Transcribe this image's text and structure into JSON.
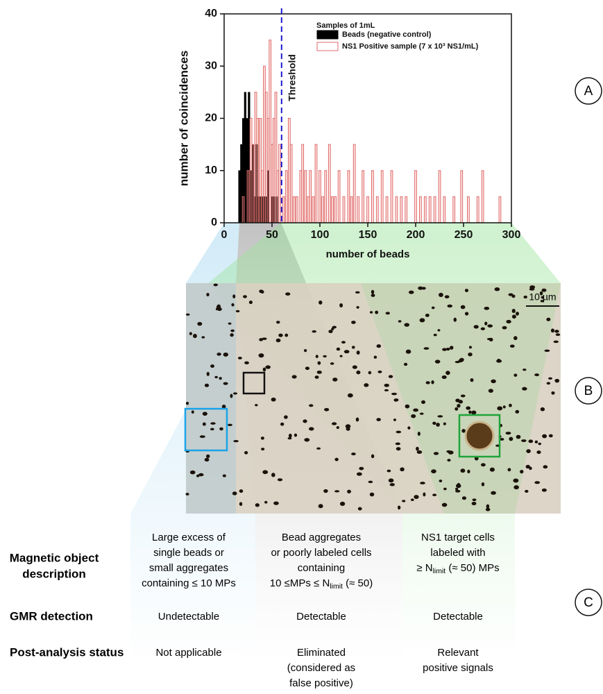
{
  "chart_data": {
    "type": "bar",
    "legend_title": "Samples of 1mL",
    "xlabel": "number of beads",
    "ylabel": "number of coincidences",
    "xlim": [
      0,
      300
    ],
    "xticks": [
      0,
      50,
      100,
      150,
      200,
      250,
      300
    ],
    "ylim": [
      0,
      40
    ],
    "yticks": [
      0,
      10,
      20,
      30,
      40
    ],
    "threshold": {
      "value": 60,
      "label": "Threshold",
      "color": "#1a1ad0"
    },
    "series": [
      {
        "name": "Beads (negative control)",
        "color": "#000000",
        "x": [
          16,
          18,
          20,
          22,
          24,
          26,
          28,
          30,
          32,
          34,
          36,
          38,
          40,
          42,
          44,
          46,
          50,
          52,
          55
        ],
        "values": [
          10,
          15,
          20,
          25,
          20,
          25,
          10,
          15,
          5,
          15,
          5,
          5,
          5,
          5,
          5,
          10,
          5,
          5,
          5
        ]
      },
      {
        "name": "NS1 Positive sample (7 x 10³ NS1/mL)",
        "color": "#e06a6a",
        "x": [
          20,
          25,
          28,
          30,
          33,
          35,
          38,
          40,
          42,
          44,
          46,
          48,
          50,
          52,
          54,
          56,
          58,
          62,
          65,
          68,
          70,
          73,
          76,
          80,
          82,
          85,
          88,
          90,
          93,
          96,
          100,
          103,
          106,
          110,
          113,
          116,
          120,
          125,
          130,
          133,
          136,
          140,
          145,
          150,
          155,
          160,
          165,
          170,
          175,
          180,
          185,
          190,
          200,
          205,
          210,
          215,
          220,
          225,
          230,
          240,
          248,
          255,
          265,
          270,
          288
        ],
        "values": [
          5,
          10,
          20,
          15,
          25,
          20,
          20,
          10,
          30,
          25,
          20,
          35,
          15,
          20,
          25,
          10,
          15,
          5,
          10,
          20,
          15,
          5,
          5,
          10,
          15,
          10,
          5,
          10,
          5,
          15,
          10,
          5,
          10,
          15,
          5,
          5,
          10,
          5,
          10,
          5,
          15,
          5,
          10,
          5,
          10,
          5,
          10,
          5,
          10,
          5,
          5,
          5,
          10,
          5,
          5,
          5,
          5,
          10,
          5,
          5,
          10,
          5,
          5,
          10,
          5
        ]
      }
    ]
  },
  "panel_labels": [
    "A",
    "B",
    "C"
  ],
  "image": {
    "scale_bar": "10 µm"
  },
  "table": {
    "rows": [
      {
        "header": [
          "Magnetic object",
          "description"
        ],
        "cells": [
          [
            "Large excess of",
            "single beads or",
            "small aggregates",
            "containing ≤ 10 MPs"
          ],
          [
            "Bead aggregates",
            "or poorly labeled cells",
            "containing",
            [
              "10 ≤MPs ≤ N",
              "limit",
              " (≈ 50)"
            ]
          ],
          [
            "NS1 target cells",
            "labeled with",
            [
              "≥ N",
              "limit",
              " (≈ 50) MPs"
            ]
          ]
        ]
      },
      {
        "header": [
          "GMR detection"
        ],
        "cells": [
          [
            "Undetectable"
          ],
          [
            "Detectable"
          ],
          [
            "Detectable"
          ]
        ]
      },
      {
        "header": [
          "Post-analysis status"
        ],
        "cells": [
          [
            "Not applicable"
          ],
          [
            "Eliminated",
            "(considered as",
            "false positive)"
          ],
          [
            "Relevant",
            "positive signals"
          ]
        ]
      }
    ]
  }
}
